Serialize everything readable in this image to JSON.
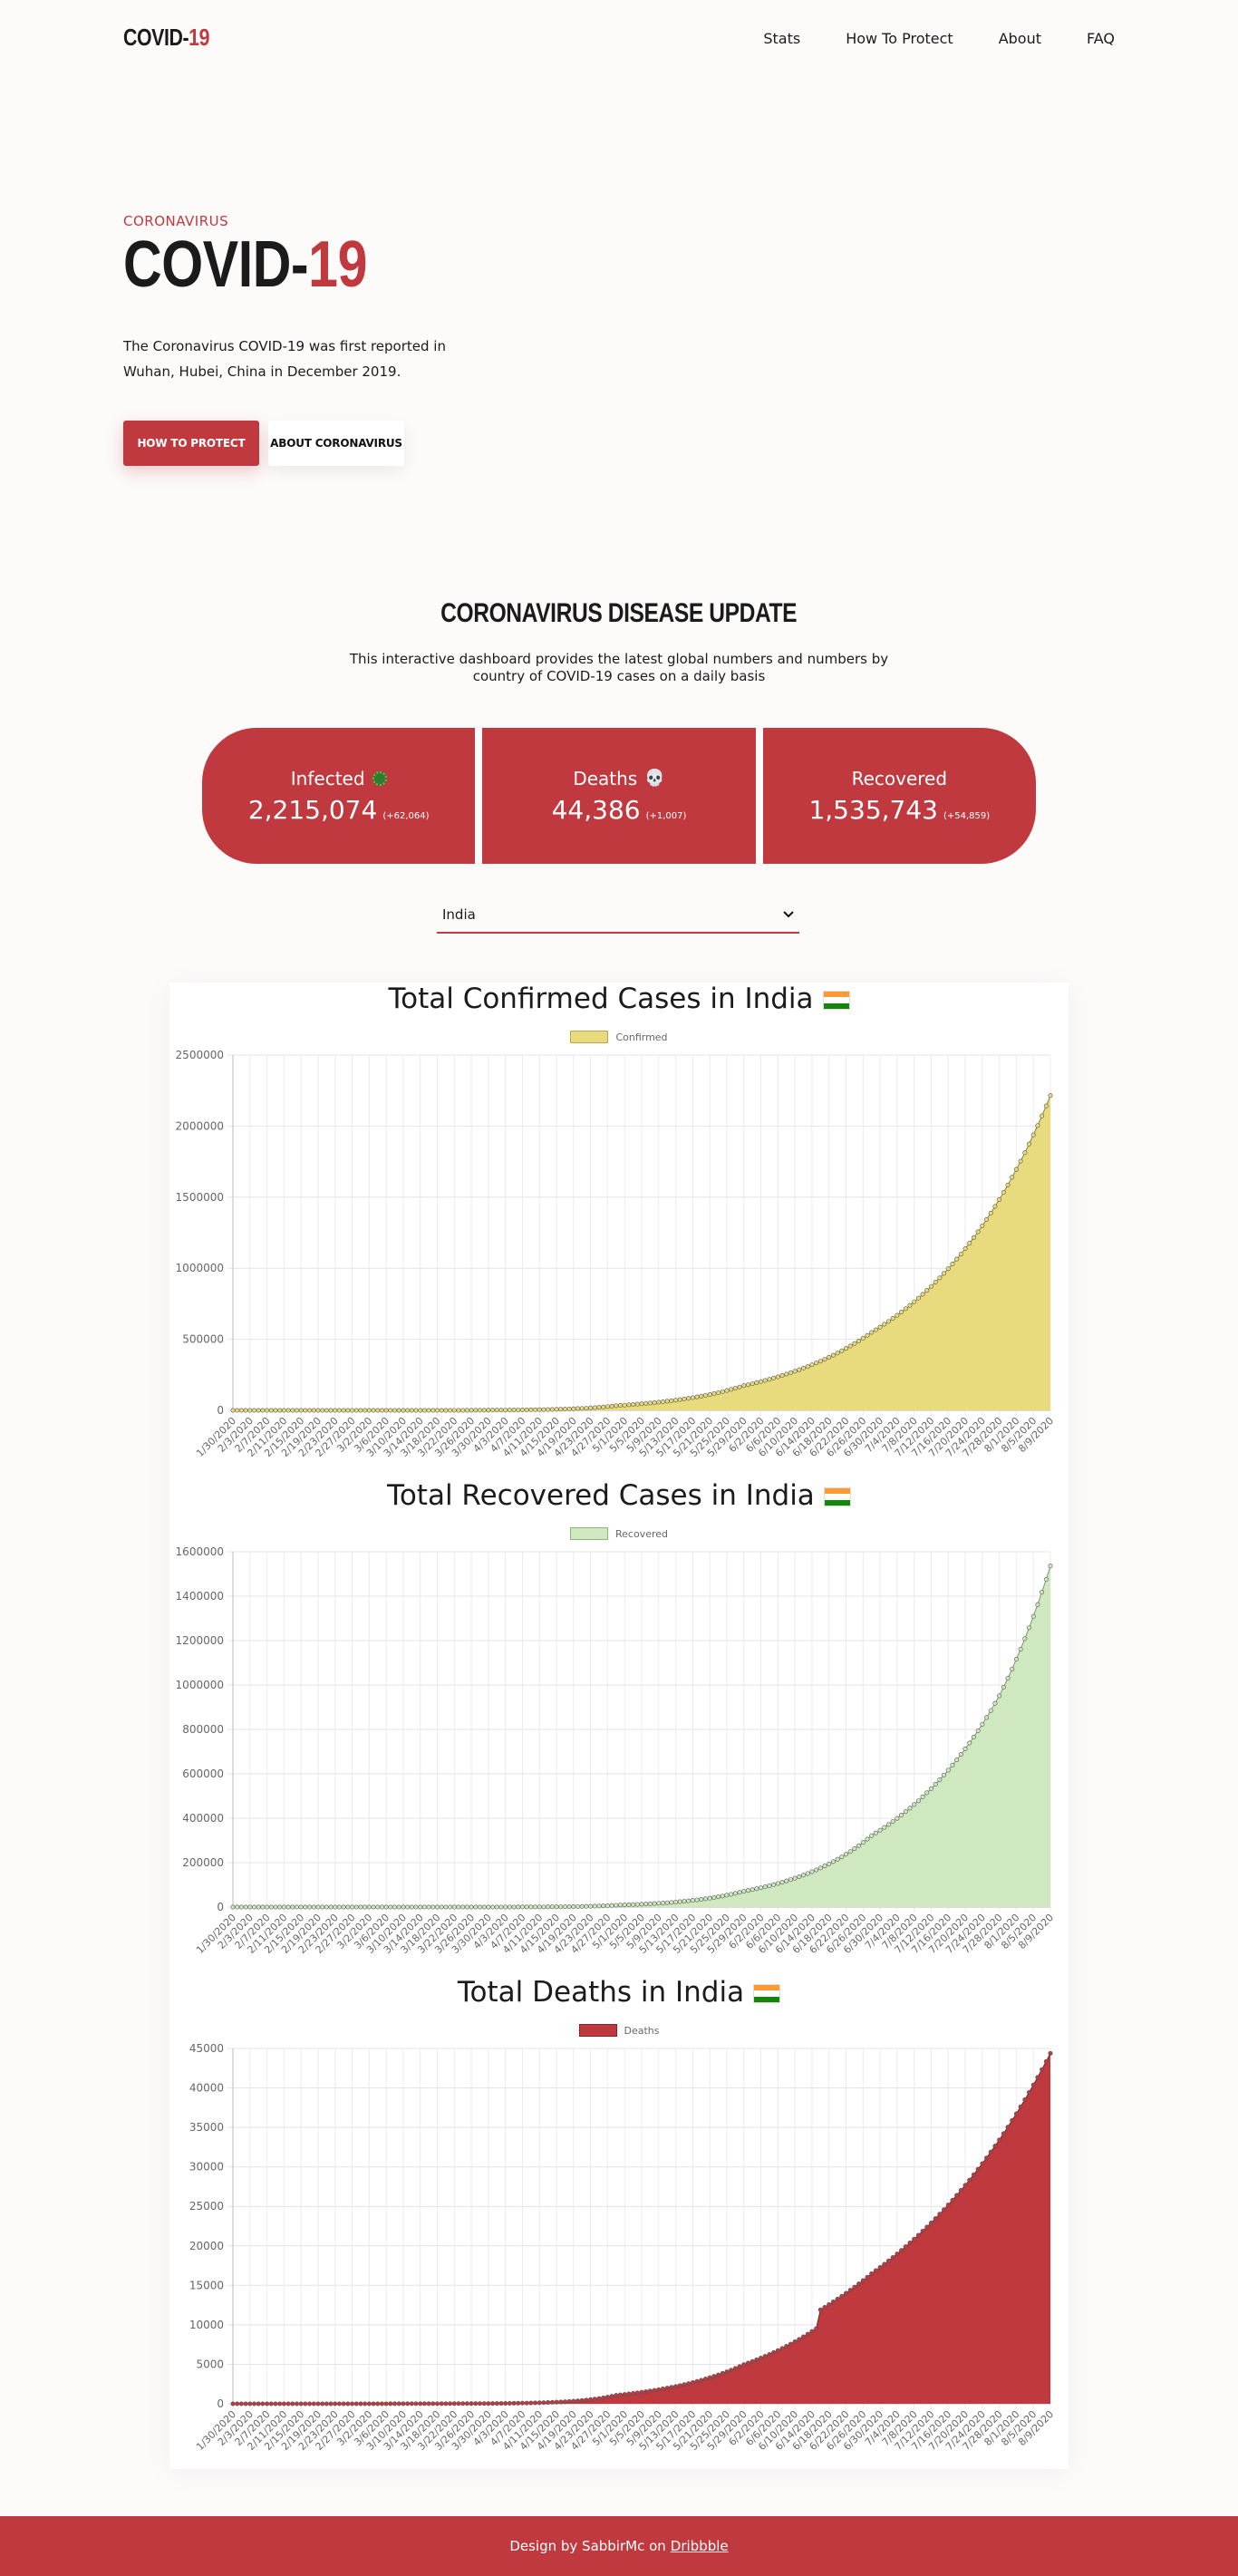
{
  "header": {
    "logo_main": "COVID-",
    "logo_accent": "19",
    "nav": [
      "Stats",
      "How To Protect",
      "About",
      "FAQ"
    ]
  },
  "hero": {
    "kicker": "CORONAVIRUS",
    "title_main": "COVID-",
    "title_accent": "19",
    "text": "The Coronavirus COVID-19 was first reported in Wuhan, Hubei, China in December 2019.",
    "primary_button": "HOW TO PROTECT",
    "secondary_button": "ABOUT CORONAVIRUS"
  },
  "update": {
    "title": "CORONAVIRUS DISEASE UPDATE",
    "subtitle": "This interactive dashboard provides the latest global numbers and numbers by country of COVID-19 cases on a daily basis"
  },
  "stats": [
    {
      "label": "Infected",
      "icon": "virus-icon",
      "value": "2,215,074",
      "delta": "(+62,064)"
    },
    {
      "label": "Deaths",
      "icon": "skull-icon",
      "value": "44,386",
      "delta": "(+1,007)"
    },
    {
      "label": "Recovered",
      "icon": "",
      "value": "1,535,743",
      "delta": "(+54,859)"
    }
  ],
  "country_select": {
    "selected": "India"
  },
  "colors": {
    "accent": "#c0393f",
    "confirmed": "#e8db7d",
    "recovered": "#cfe8c0",
    "deaths": "#c0393f"
  },
  "chart_data": [
    {
      "type": "area",
      "title": "Total Confirmed Cases in India",
      "series": [
        {
          "name": "Confirmed",
          "values_x": [
            "1/30/2020",
            "2/29/2020",
            "3/30/2020",
            "4/29/2020",
            "5/29/2020",
            "6/28/2020",
            "7/28/2020",
            "8/9/2020"
          ],
          "values": [
            1,
            3,
            1251,
            33062,
            173763,
            548318,
            1483156,
            2215074
          ]
        }
      ],
      "x_ticks": [
        "1/30/2020",
        "2/3/2020",
        "2/7/2020",
        "2/11/2020",
        "2/15/2020",
        "2/19/2020",
        "2/23/2020",
        "2/27/2020",
        "3/2/2020",
        "3/6/2020",
        "3/10/2020",
        "3/14/2020",
        "3/18/2020",
        "3/22/2020",
        "3/26/2020",
        "3/30/2020",
        "4/3/2020",
        "4/7/2020",
        "4/11/2020",
        "4/15/2020",
        "4/19/2020",
        "4/23/2020",
        "4/27/2020",
        "5/1/2020",
        "5/5/2020",
        "5/9/2020",
        "5/13/2020",
        "5/17/2020",
        "5/21/2020",
        "5/25/2020",
        "5/29/2020",
        "6/2/2020",
        "6/6/2020",
        "6/10/2020",
        "6/14/2020",
        "6/18/2020",
        "6/22/2020",
        "6/26/2020",
        "6/30/2020",
        "7/4/2020",
        "7/8/2020",
        "7/12/2020",
        "7/16/2020",
        "7/20/2020",
        "7/24/2020",
        "7/28/2020",
        "8/1/2020",
        "8/5/2020",
        "8/9/2020"
      ],
      "y_ticks": [
        "0",
        "500000",
        "1000000",
        "1500000",
        "2000000",
        "2500000"
      ],
      "ylim": [
        0,
        2500000
      ],
      "grid": true,
      "legend": "top-center"
    },
    {
      "type": "area",
      "title": "Total Recovered Cases in India",
      "series": [
        {
          "name": "Recovered",
          "values_x": [
            "1/30/2020",
            "2/29/2020",
            "3/30/2020",
            "4/29/2020",
            "5/29/2020",
            "6/28/2020",
            "7/28/2020",
            "8/9/2020"
          ],
          "values": [
            0,
            3,
            102,
            8324,
            71106,
            321723,
            951166,
            1535743
          ]
        }
      ],
      "x_ticks": [
        "1/30/2020",
        "2/3/2020",
        "2/7/2020",
        "2/11/2020",
        "2/15/2020",
        "2/19/2020",
        "2/23/2020",
        "2/27/2020",
        "3/2/2020",
        "3/6/2020",
        "3/10/2020",
        "3/14/2020",
        "3/18/2020",
        "3/22/2020",
        "3/26/2020",
        "3/30/2020",
        "4/3/2020",
        "4/7/2020",
        "4/11/2020",
        "4/15/2020",
        "4/19/2020",
        "4/23/2020",
        "4/27/2020",
        "5/1/2020",
        "5/5/2020",
        "5/9/2020",
        "5/13/2020",
        "5/17/2020",
        "5/21/2020",
        "5/25/2020",
        "5/29/2020",
        "6/2/2020",
        "6/6/2020",
        "6/10/2020",
        "6/14/2020",
        "6/18/2020",
        "6/22/2020",
        "6/26/2020",
        "6/30/2020",
        "7/4/2020",
        "7/8/2020",
        "7/12/2020",
        "7/16/2020",
        "7/20/2020",
        "7/24/2020",
        "7/28/2020",
        "8/1/2020",
        "8/5/2020",
        "8/9/2020"
      ],
      "y_ticks": [
        "0",
        "200000",
        "400000",
        "600000",
        "800000",
        "1000000",
        "1200000",
        "1400000",
        "1600000"
      ],
      "ylim": [
        0,
        1600000
      ],
      "grid": true,
      "legend": "top-center"
    },
    {
      "type": "area",
      "title": "Total Deaths in India",
      "series": [
        {
          "name": "Deaths",
          "values_x": [
            "1/30/2020",
            "2/29/2020",
            "3/30/2020",
            "4/29/2020",
            "5/29/2020",
            "6/15/2020",
            "6/16/2020",
            "6/28/2020",
            "7/28/2020",
            "8/9/2020"
          ],
          "values": [
            0,
            0,
            32,
            1079,
            4971,
            9520,
            11903,
            16475,
            33425,
            44386
          ]
        }
      ],
      "x_ticks": [
        "1/30/2020",
        "2/3/2020",
        "2/7/2020",
        "2/11/2020",
        "2/15/2020",
        "2/19/2020",
        "2/23/2020",
        "2/27/2020",
        "3/2/2020",
        "3/6/2020",
        "3/10/2020",
        "3/14/2020",
        "3/18/2020",
        "3/22/2020",
        "3/26/2020",
        "3/30/2020",
        "4/3/2020",
        "4/7/2020",
        "4/11/2020",
        "4/15/2020",
        "4/19/2020",
        "4/23/2020",
        "4/27/2020",
        "5/1/2020",
        "5/5/2020",
        "5/9/2020",
        "5/13/2020",
        "5/17/2020",
        "5/21/2020",
        "5/25/2020",
        "5/29/2020",
        "6/2/2020",
        "6/6/2020",
        "6/10/2020",
        "6/14/2020",
        "6/18/2020",
        "6/22/2020",
        "6/26/2020",
        "6/30/2020",
        "7/4/2020",
        "7/8/2020",
        "7/12/2020",
        "7/16/2020",
        "7/20/2020",
        "7/24/2020",
        "7/28/2020",
        "8/1/2020",
        "8/5/2020",
        "8/9/2020"
      ],
      "y_ticks": [
        "0",
        "5000",
        "10000",
        "15000",
        "20000",
        "25000",
        "30000",
        "35000",
        "40000",
        "45000"
      ],
      "ylim": [
        0,
        45000
      ],
      "grid": true,
      "legend": "top-center"
    }
  ],
  "footer": {
    "prefix": "Design by SabbirMc on",
    "link": "Dribbble"
  }
}
